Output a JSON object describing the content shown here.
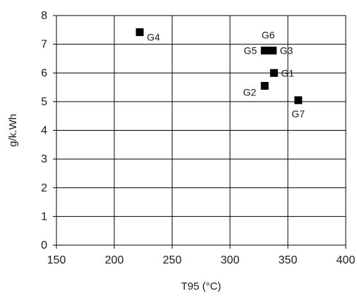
{
  "chart_data": {
    "type": "scatter",
    "xlabel": "T95 (°C)",
    "ylabel": "g/k.Wh",
    "xlim": [
      150,
      400
    ],
    "ylim": [
      0,
      8
    ],
    "xticks": [
      150,
      200,
      250,
      300,
      350,
      400
    ],
    "yticks": [
      0,
      1,
      2,
      3,
      4,
      5,
      6,
      7,
      8
    ],
    "grid": true,
    "marker": "square",
    "colors": {
      "marker": "#000000",
      "grid": "#000000",
      "axis": "#000000",
      "text": "#1a1a1a"
    },
    "points": [
      {
        "label": "G1",
        "x": 338,
        "y": 6.0,
        "label_side": "right"
      },
      {
        "label": "G2",
        "x": 330,
        "y": 5.55,
        "label_side": "left-below"
      },
      {
        "label": "G3",
        "x": 337,
        "y": 6.78,
        "label_side": "right"
      },
      {
        "label": "G4",
        "x": 222,
        "y": 7.42,
        "label_side": "right-below"
      },
      {
        "label": "G5",
        "x": 330,
        "y": 6.78,
        "label_side": "left"
      },
      {
        "label": "G6",
        "x": 333,
        "y": 6.78,
        "label_side": "above"
      },
      {
        "label": "G7",
        "x": 359,
        "y": 5.05,
        "label_side": "below"
      }
    ]
  }
}
